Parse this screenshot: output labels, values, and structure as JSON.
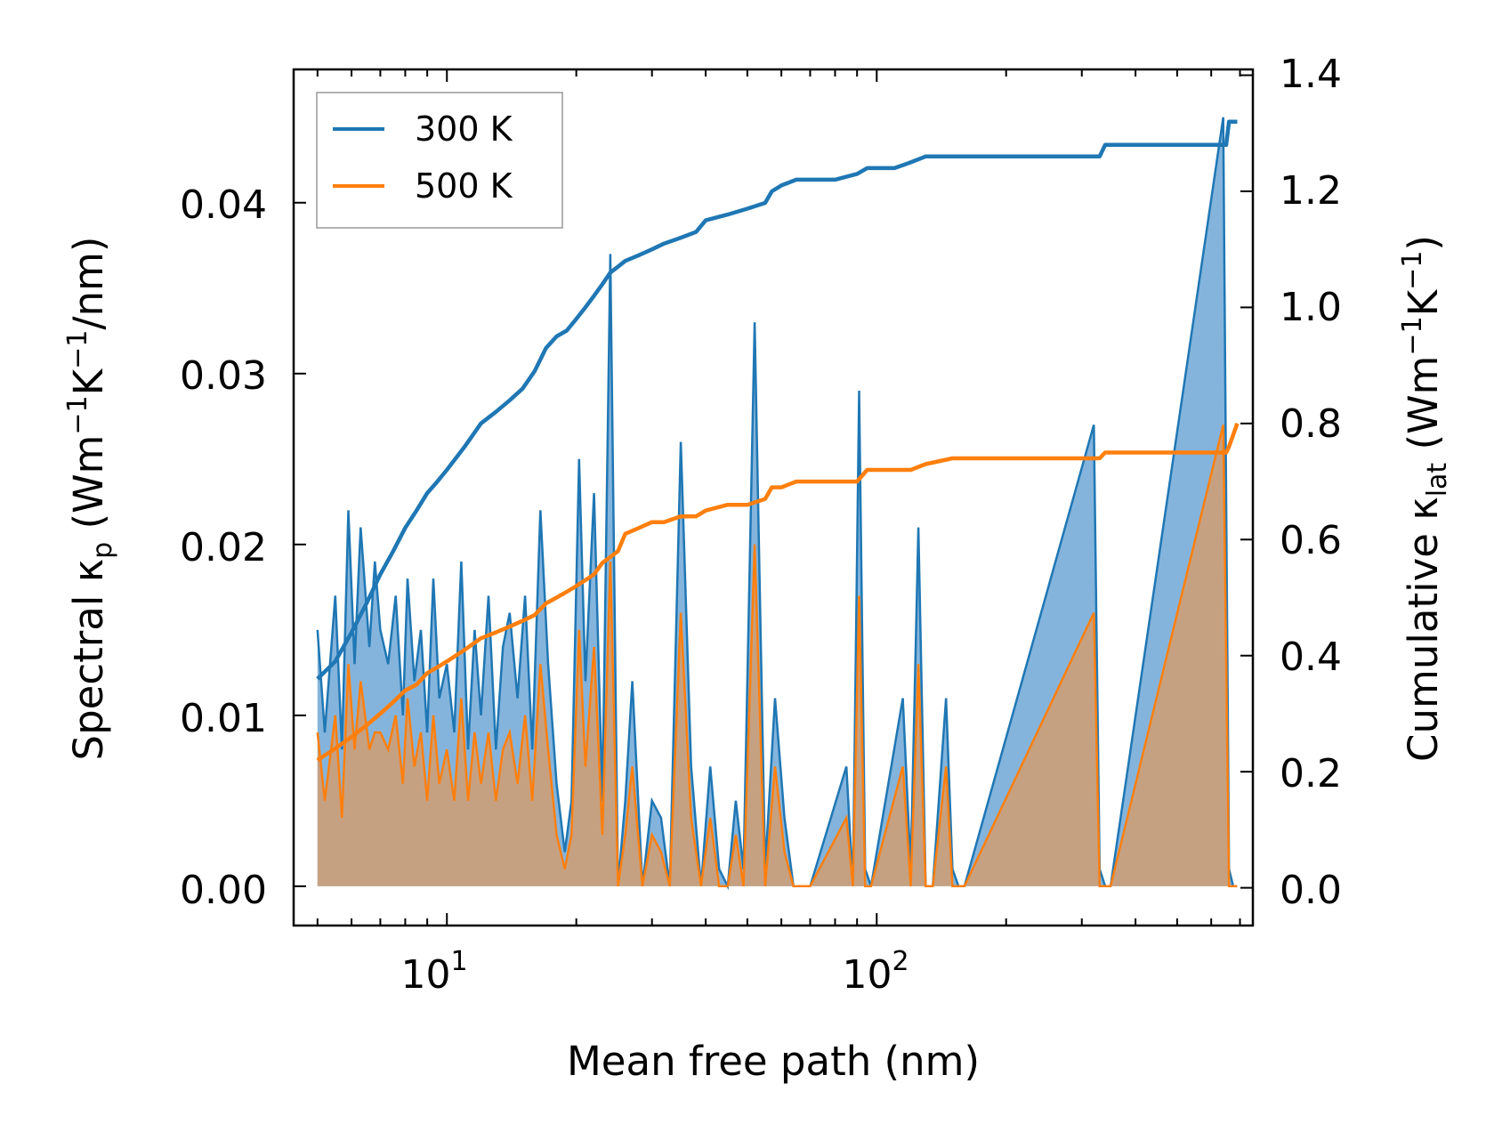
{
  "chart_data": {
    "type": "line",
    "xlabel": "Mean free path (nm)",
    "xscale": "log",
    "xlim": [
      4.4,
      750
    ],
    "x_tick_labels": [
      "10",
      "10"
    ],
    "x_tick_exponents": [
      "1",
      "2"
    ],
    "ylabel_left": {
      "main": "Spectral κ",
      "sub": "p",
      "unit_a": " (Wm",
      "exp_a": "−1",
      "unit_b": "K",
      "exp_b": "−1",
      "unit_c": "/nm)"
    },
    "ylim_left": [
      -0.0023,
      0.0478
    ],
    "yticks_left": [
      "0.00",
      "0.01",
      "0.02",
      "0.03",
      "0.04"
    ],
    "ylabel_right": {
      "main": "Cumulative κ",
      "sub": "lat",
      "unit_a": " (Wm",
      "exp_a": "−1",
      "unit_b": "K",
      "exp_b": "−1",
      "unit_c": ")"
    },
    "ylim_right": [
      -0.065,
      1.41
    ],
    "yticks_right": [
      "0.0",
      "0.2",
      "0.4",
      "0.6",
      "0.8",
      "1.0",
      "1.2",
      "1.4"
    ],
    "legend": {
      "placement": "top-left",
      "entries": [
        "300 K",
        "500 K"
      ]
    },
    "colors": {
      "300 K": "#1f77b4",
      "500 K": "#ff7f0e",
      "fill_300": "#5b9bd0",
      "fill_500": "#c8a07c"
    },
    "spectral_series": [
      {
        "name": "300 K",
        "x": [
          5.0,
          5.2,
          5.5,
          5.7,
          5.9,
          6.1,
          6.3,
          6.6,
          6.8,
          7.0,
          7.3,
          7.6,
          7.9,
          8.1,
          8.4,
          8.7,
          9.0,
          9.3,
          9.6,
          10.0,
          10.4,
          10.8,
          11.2,
          11.6,
          12.0,
          12.5,
          13.0,
          13.5,
          14.0,
          14.6,
          15.2,
          15.8,
          16.5,
          17.2,
          18.0,
          18.8,
          19.5,
          20.3,
          21.0,
          22.0,
          23.0,
          24.0,
          25.0,
          26.0,
          27.0,
          28.5,
          30.0,
          31.5,
          33.0,
          35.0,
          37.0,
          39.0,
          41.0,
          43.0,
          45.0,
          47.0,
          49.0,
          52.0,
          55.0,
          58.0,
          61.0,
          64.0,
          67.0,
          70.0,
          85.0,
          88.0,
          91.0,
          94.0,
          97.0,
          115.0,
          120.0,
          125.0,
          130.0,
          135.0,
          145.0,
          150.0,
          155.0,
          160.0,
          320.0,
          330.0,
          340.0,
          350.0,
          640.0,
          660.0,
          675.0,
          690.0
        ],
        "values": [
          0.015,
          0.009,
          0.017,
          0.008,
          0.022,
          0.013,
          0.021,
          0.014,
          0.019,
          0.015,
          0.013,
          0.017,
          0.01,
          0.018,
          0.012,
          0.015,
          0.009,
          0.018,
          0.011,
          0.013,
          0.009,
          0.019,
          0.008,
          0.015,
          0.01,
          0.017,
          0.008,
          0.014,
          0.016,
          0.011,
          0.017,
          0.008,
          0.022,
          0.013,
          0.006,
          0.002,
          0.005,
          0.025,
          0.012,
          0.023,
          0.005,
          0.037,
          0.0,
          0.005,
          0.012,
          0.0,
          0.005,
          0.004,
          0.0,
          0.026,
          0.007,
          0.0,
          0.007,
          0.001,
          0.0,
          0.005,
          0.001,
          0.033,
          0.001,
          0.011,
          0.004,
          0.0,
          0.0,
          0.0,
          0.007,
          0.0,
          0.029,
          0.001,
          0.0,
          0.011,
          0.001,
          0.021,
          0.0,
          0.0,
          0.011,
          0.001,
          0.0,
          0.0,
          0.027,
          0.001,
          0.0,
          0.0,
          0.045,
          0.001,
          0.0,
          0.0
        ]
      },
      {
        "name": "500 K",
        "x": [
          5.0,
          5.2,
          5.5,
          5.7,
          5.9,
          6.1,
          6.3,
          6.6,
          6.8,
          7.0,
          7.3,
          7.6,
          7.9,
          8.1,
          8.4,
          8.7,
          9.0,
          9.3,
          9.6,
          10.0,
          10.4,
          10.8,
          11.2,
          11.6,
          12.0,
          12.5,
          13.0,
          13.5,
          14.0,
          14.6,
          15.2,
          15.8,
          16.5,
          17.2,
          18.0,
          18.8,
          19.5,
          20.3,
          21.0,
          22.0,
          23.0,
          24.0,
          25.0,
          26.0,
          27.0,
          28.5,
          30.0,
          31.5,
          33.0,
          35.0,
          37.0,
          39.0,
          41.0,
          43.0,
          45.0,
          47.0,
          49.0,
          52.0,
          55.0,
          58.0,
          61.0,
          64.0,
          67.0,
          70.0,
          85.0,
          88.0,
          91.0,
          94.0,
          97.0,
          115.0,
          120.0,
          125.0,
          130.0,
          135.0,
          145.0,
          150.0,
          155.0,
          160.0,
          320.0,
          330.0,
          340.0,
          350.0,
          640.0,
          660.0,
          675.0,
          690.0
        ],
        "values": [
          0.009,
          0.005,
          0.01,
          0.004,
          0.013,
          0.008,
          0.012,
          0.008,
          0.009,
          0.009,
          0.008,
          0.01,
          0.006,
          0.011,
          0.007,
          0.009,
          0.005,
          0.01,
          0.006,
          0.008,
          0.005,
          0.011,
          0.005,
          0.009,
          0.006,
          0.009,
          0.005,
          0.008,
          0.009,
          0.006,
          0.01,
          0.005,
          0.013,
          0.008,
          0.003,
          0.001,
          0.003,
          0.015,
          0.007,
          0.014,
          0.003,
          0.019,
          0.0,
          0.003,
          0.007,
          0.0,
          0.003,
          0.002,
          0.0,
          0.016,
          0.004,
          0.0,
          0.004,
          0.0,
          0.0,
          0.003,
          0.0,
          0.02,
          0.0,
          0.007,
          0.002,
          0.0,
          0.0,
          0.0,
          0.004,
          0.0,
          0.017,
          0.0,
          0.0,
          0.007,
          0.0,
          0.013,
          0.0,
          0.0,
          0.007,
          0.0,
          0.0,
          0.0,
          0.016,
          0.0,
          0.0,
          0.0,
          0.027,
          0.0,
          0.0,
          0.0
        ]
      }
    ],
    "cumulative_series": [
      {
        "name": "300 K",
        "x": [
          5.0,
          5.5,
          6.0,
          6.5,
          7.0,
          7.5,
          8.0,
          8.5,
          9.0,
          9.5,
          10.0,
          11.0,
          12.0,
          13.0,
          14.0,
          15.0,
          16.0,
          17.0,
          18.0,
          19.0,
          20.0,
          21.0,
          22.0,
          23.0,
          24.0,
          25.0,
          26.0,
          28.0,
          30.0,
          32.0,
          35.0,
          38.0,
          40.0,
          45.0,
          50.0,
          55.0,
          57.0,
          60.0,
          65.0,
          70.0,
          80.0,
          90.0,
          95.0,
          110.0,
          120.0,
          130.0,
          150.0,
          200.0,
          330.0,
          340.0,
          400.0,
          600.0,
          650.0,
          660.0,
          690.0
        ],
        "values": [
          0.36,
          0.39,
          0.44,
          0.49,
          0.54,
          0.58,
          0.62,
          0.65,
          0.68,
          0.7,
          0.72,
          0.76,
          0.8,
          0.82,
          0.84,
          0.86,
          0.89,
          0.93,
          0.95,
          0.96,
          0.98,
          1.0,
          1.02,
          1.04,
          1.06,
          1.07,
          1.08,
          1.09,
          1.1,
          1.11,
          1.12,
          1.13,
          1.15,
          1.16,
          1.17,
          1.18,
          1.2,
          1.21,
          1.22,
          1.22,
          1.22,
          1.23,
          1.24,
          1.24,
          1.25,
          1.26,
          1.26,
          1.26,
          1.26,
          1.28,
          1.28,
          1.28,
          1.28,
          1.32,
          1.32
        ]
      },
      {
        "name": "500 K",
        "x": [
          5.0,
          5.5,
          6.0,
          6.5,
          7.0,
          7.5,
          8.0,
          8.5,
          9.0,
          9.5,
          10.0,
          11.0,
          12.0,
          13.0,
          14.0,
          15.0,
          16.0,
          17.0,
          18.0,
          19.0,
          20.0,
          21.0,
          22.0,
          23.0,
          24.0,
          25.0,
          26.0,
          28.0,
          30.0,
          32.0,
          35.0,
          38.0,
          40.0,
          45.0,
          50.0,
          55.0,
          57.0,
          60.0,
          65.0,
          70.0,
          80.0,
          90.0,
          95.0,
          110.0,
          120.0,
          130.0,
          150.0,
          200.0,
          330.0,
          340.0,
          400.0,
          600.0,
          650.0,
          660.0,
          690.0
        ],
        "values": [
          0.22,
          0.24,
          0.26,
          0.28,
          0.3,
          0.32,
          0.34,
          0.35,
          0.37,
          0.38,
          0.39,
          0.41,
          0.43,
          0.44,
          0.45,
          0.46,
          0.47,
          0.49,
          0.5,
          0.51,
          0.52,
          0.53,
          0.54,
          0.56,
          0.57,
          0.58,
          0.61,
          0.62,
          0.63,
          0.63,
          0.64,
          0.64,
          0.65,
          0.66,
          0.66,
          0.67,
          0.69,
          0.69,
          0.7,
          0.7,
          0.7,
          0.7,
          0.72,
          0.72,
          0.72,
          0.73,
          0.74,
          0.74,
          0.74,
          0.75,
          0.75,
          0.75,
          0.75,
          0.76,
          0.8
        ]
      }
    ]
  }
}
